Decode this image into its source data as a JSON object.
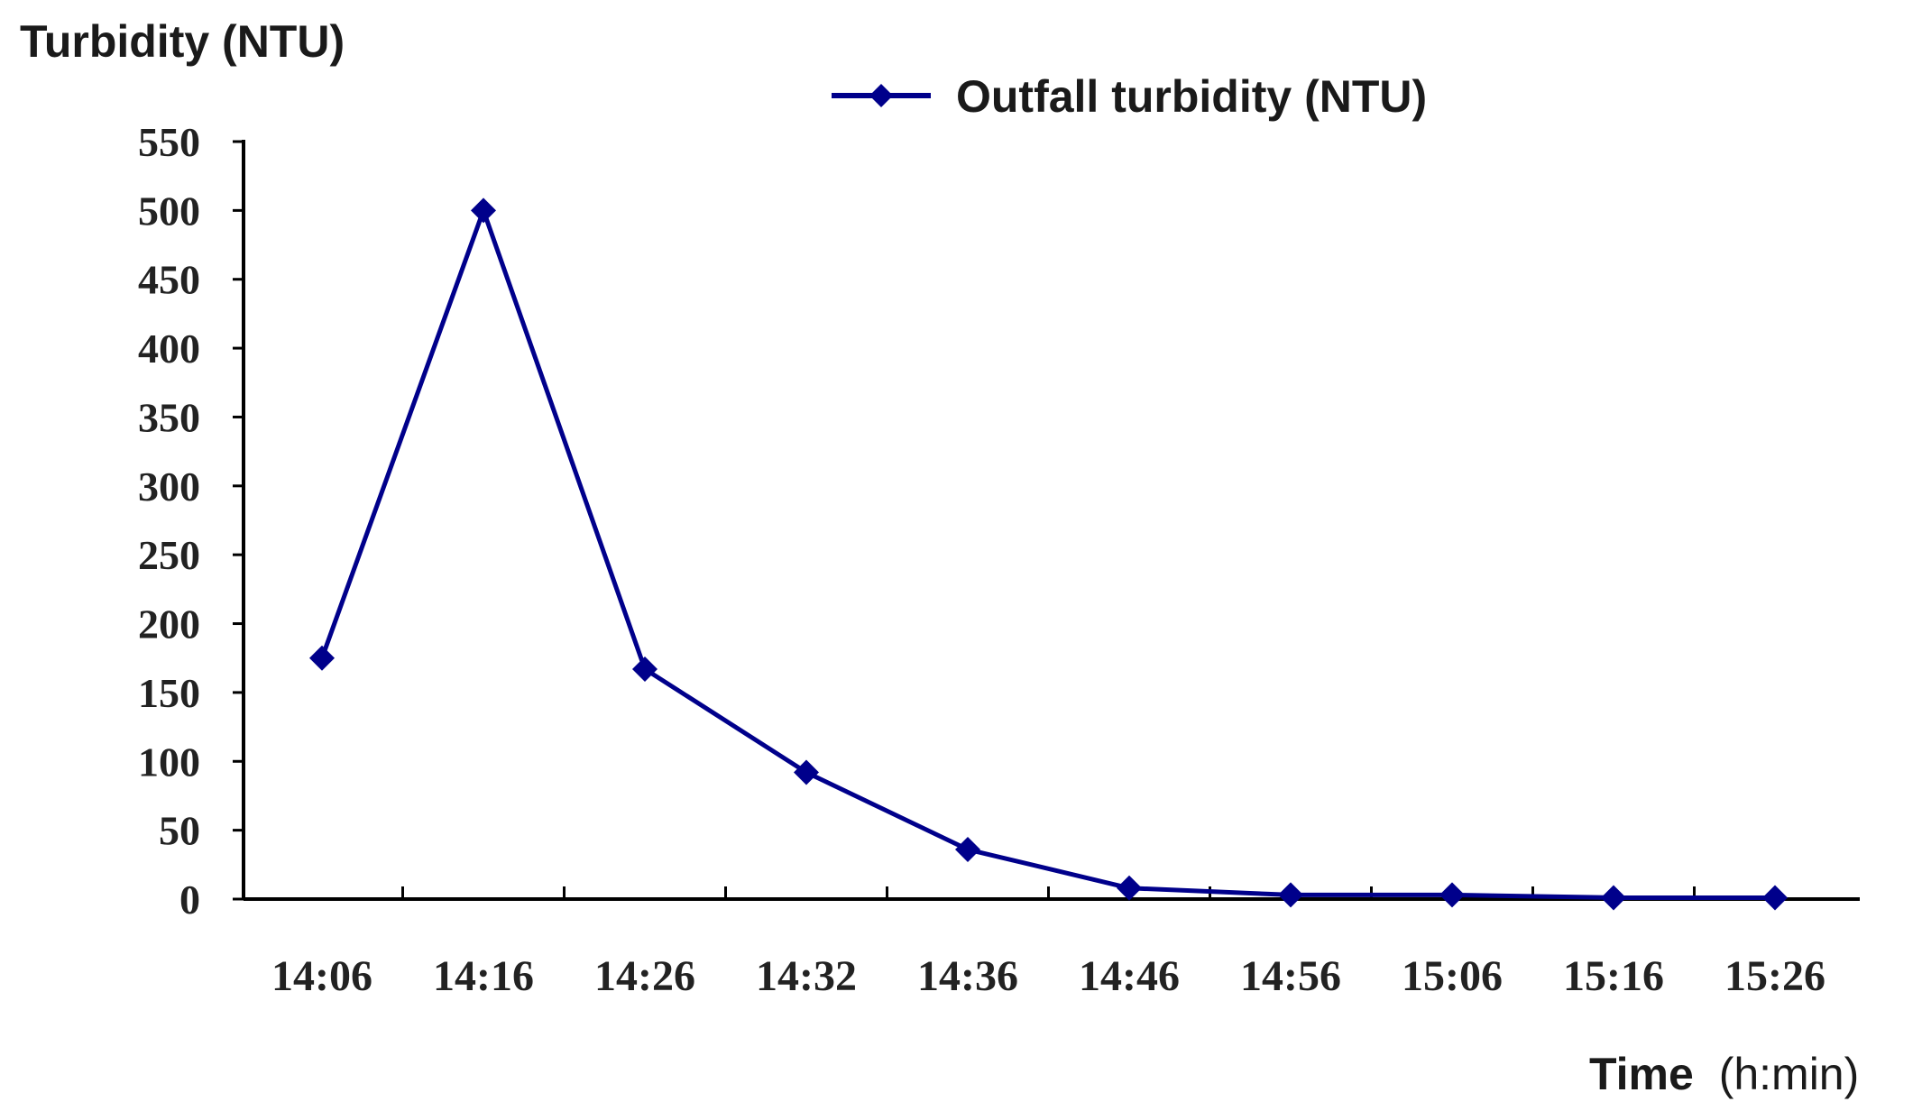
{
  "chart_data": {
    "type": "line",
    "title": "",
    "ylabel": "Turbidity (NTU)",
    "xlabel_main": "Time",
    "xlabel_unit": "(h:min)",
    "categories": [
      "14:06",
      "14:16",
      "14:26",
      "14:32",
      "14:36",
      "14:46",
      "14:56",
      "15:06",
      "15:16",
      "15:26"
    ],
    "category_labels": [
      "14:06",
      "14:16",
      "14:26",
      "14:32",
      "14:36",
      "14:46",
      "14:56",
      "15:06",
      "15:16",
      "15:26"
    ],
    "series": [
      {
        "name": "Outfall turbidity (NTU)",
        "color": "#00008b",
        "marker": "diamond",
        "values": [
          175,
          500,
          167,
          92,
          36,
          8,
          3,
          3,
          1,
          1
        ]
      }
    ],
    "ylim": [
      0,
      550
    ],
    "yticks": [
      0,
      50,
      100,
      150,
      200,
      250,
      300,
      350,
      400,
      450,
      500,
      550
    ],
    "grid": false,
    "legend_position": "top-right"
  }
}
